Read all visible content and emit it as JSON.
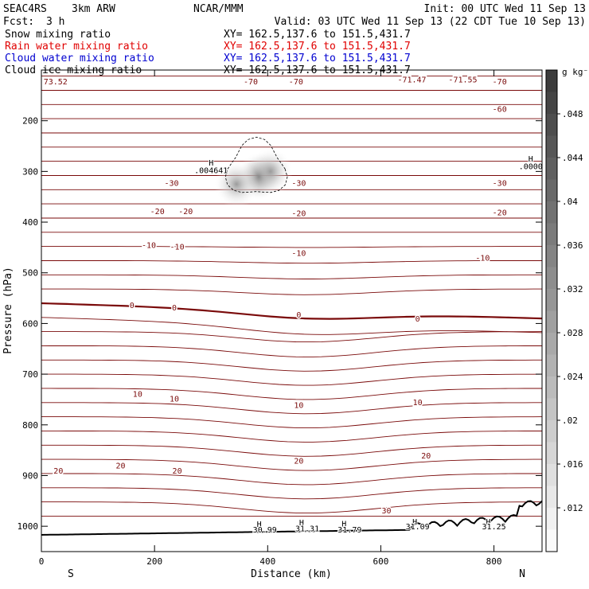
{
  "header": {
    "model": "SEAC4RS",
    "resolution": "3km ARW",
    "center": "NCAR/MMM",
    "init": "Init: 00 UTC Wed 11 Sep 13",
    "fcst_label": "Fcst:",
    "fcst_value": "3 h",
    "valid": "Valid: 03 UTC Wed 11 Sep 13 (22 CDT Tue 10 Sep 13)"
  },
  "fields": [
    {
      "name": "Snow mixing ratio",
      "xy": "XY= 162.5,137.6 to 151.5,431.7",
      "color": "#000000"
    },
    {
      "name": "Rain water mixing ratio",
      "xy": "XY= 162.5,137.6 to 151.5,431.7",
      "color": "#e00000"
    },
    {
      "name": "Cloud water mixing ratio",
      "xy": "XY= 162.5,137.6 to 151.5,431.7",
      "color": "#0000d0"
    },
    {
      "name": "Cloud ice mixing ratio",
      "xy": "XY= 162.5,137.6 to 151.5,431.7",
      "color": "#000000"
    }
  ],
  "colors": {
    "temp_contour": "#7a0a0a",
    "terrain": "#000000",
    "shade": "#444444"
  },
  "chart_data": {
    "type": "cross-section",
    "xlabel": "Distance (km)",
    "ylabel": "Pressure (hPa)",
    "xlim": [
      0,
      885
    ],
    "ylim": [
      1050,
      100
    ],
    "xticks": [
      0,
      200,
      400,
      600,
      800
    ],
    "yticks": [
      200,
      300,
      400,
      500,
      600,
      700,
      800,
      900,
      1000
    ],
    "left_end": "S",
    "right_end": "N",
    "colorbar": {
      "unit": "g kg⁻¹",
      "ticks": [
        ".012",
        ".016",
        ".02",
        ".024",
        ".028",
        ".032",
        ".036",
        ".04",
        ".044",
        ".048"
      ],
      "values": [
        0.012,
        0.016,
        0.02,
        0.024,
        0.028,
        0.032,
        0.036,
        0.04,
        0.044,
        0.048
      ],
      "vmin": 0.008,
      "vmax": 0.052
    },
    "contour_labels": [
      {
        "text": "73.52",
        "x": 25,
        "p": 122
      },
      {
        "text": "-70",
        "x": 370,
        "p": 122
      },
      {
        "text": "-70",
        "x": 450,
        "p": 122
      },
      {
        "text": "-71.47",
        "x": 655,
        "p": 118
      },
      {
        "text": "-71.55",
        "x": 745,
        "p": 118
      },
      {
        "text": "-70",
        "x": 810,
        "p": 122
      },
      {
        "text": "-60",
        "x": 810,
        "p": 176
      },
      {
        "text": "-30",
        "x": 230,
        "p": 322
      },
      {
        "text": "-30",
        "x": 455,
        "p": 322
      },
      {
        "text": "-30",
        "x": 810,
        "p": 322
      },
      {
        "text": "-20",
        "x": 205,
        "p": 378
      },
      {
        "text": "-20",
        "x": 255,
        "p": 378
      },
      {
        "text": "-20",
        "x": 455,
        "p": 382
      },
      {
        "text": "-20",
        "x": 810,
        "p": 380
      },
      {
        "text": "-10",
        "x": 190,
        "p": 445
      },
      {
        "text": "-10",
        "x": 240,
        "p": 448
      },
      {
        "text": "-10",
        "x": 455,
        "p": 460
      },
      {
        "text": "-10",
        "x": 780,
        "p": 470
      },
      {
        "text": "0",
        "x": 160,
        "p": 563
      },
      {
        "text": "0",
        "x": 235,
        "p": 568
      },
      {
        "text": "0",
        "x": 455,
        "p": 582
      },
      {
        "text": "0",
        "x": 665,
        "p": 590
      },
      {
        "text": "10",
        "x": 170,
        "p": 738
      },
      {
        "text": "10",
        "x": 235,
        "p": 748
      },
      {
        "text": "10",
        "x": 455,
        "p": 760
      },
      {
        "text": "10",
        "x": 665,
        "p": 755
      },
      {
        "text": "20",
        "x": 30,
        "p": 890
      },
      {
        "text": "20",
        "x": 140,
        "p": 880
      },
      {
        "text": "20",
        "x": 240,
        "p": 890
      },
      {
        "text": "20",
        "x": 455,
        "p": 870
      },
      {
        "text": "20",
        "x": 680,
        "p": 860
      },
      {
        "text": "30",
        "x": 610,
        "p": 968
      }
    ],
    "annotations": [
      {
        "text": "H",
        "x": 300,
        "p": 282
      },
      {
        "text": ".004641",
        "x": 300,
        "p": 297
      },
      {
        "text": "H",
        "x": 865,
        "p": 274
      },
      {
        "text": ".0000",
        "x": 865,
        "p": 289
      },
      {
        "text": "H",
        "x": 385,
        "p": 995
      },
      {
        "text": "30.99",
        "x": 395,
        "p": 1006
      },
      {
        "text": "H",
        "x": 460,
        "p": 992
      },
      {
        "text": "31.31",
        "x": 470,
        "p": 1004
      },
      {
        "text": "H",
        "x": 535,
        "p": 994
      },
      {
        "text": "31.79",
        "x": 545,
        "p": 1006
      },
      {
        "text": "H",
        "x": 660,
        "p": 990
      },
      {
        "text": "31.09",
        "x": 665,
        "p": 1000
      },
      {
        "text": "H",
        "x": 790,
        "p": 990
      },
      {
        "text": "31.25",
        "x": 800,
        "p": 1000
      }
    ],
    "cloud_shading": [
      {
        "x": 385,
        "p": 310,
        "value": 0.046
      },
      {
        "x": 345,
        "p": 325,
        "value": 0.03
      },
      {
        "x": 405,
        "p": 300,
        "value": 0.03
      }
    ]
  }
}
